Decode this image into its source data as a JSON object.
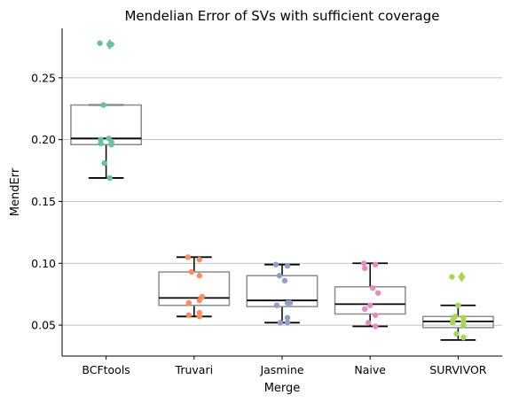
{
  "chart_data": {
    "type": "box",
    "title": "Mendelian Error of SVs with sufficient coverage",
    "xlabel": "Merge",
    "ylabel": "MendErr",
    "ylim": [
      0.025,
      0.29
    ],
    "yticks": [
      0.05,
      0.1,
      0.15,
      0.2,
      0.25
    ],
    "ytick_labels": [
      "0.05",
      "0.10",
      "0.15",
      "0.20",
      "0.25"
    ],
    "grid": "horizontal",
    "categories": [
      "BCFtools",
      "Truvari",
      "Jasmine",
      "Naive",
      "SURVIVOR"
    ],
    "colors": [
      "#66c2a5",
      "#fc8d62",
      "#8da0cb",
      "#e78ac3",
      "#a6d854"
    ],
    "boxes": [
      {
        "whislo": 0.169,
        "q1": 0.196,
        "med": 0.201,
        "q3": 0.228,
        "whishi": 0.228,
        "fliers": [
          0.277
        ]
      },
      {
        "whislo": 0.057,
        "q1": 0.066,
        "med": 0.072,
        "q3": 0.093,
        "whishi": 0.105,
        "fliers": []
      },
      {
        "whislo": 0.052,
        "q1": 0.065,
        "med": 0.07,
        "q3": 0.09,
        "whishi": 0.099,
        "fliers": []
      },
      {
        "whislo": 0.049,
        "q1": 0.059,
        "med": 0.067,
        "q3": 0.081,
        "whishi": 0.1,
        "fliers": []
      },
      {
        "whislo": 0.038,
        "q1": 0.048,
        "med": 0.053,
        "q3": 0.057,
        "whishi": 0.066,
        "fliers": [
          0.089
        ]
      }
    ],
    "points": [
      [
        0.278,
        0.277,
        0.228,
        0.201,
        0.2,
        0.198,
        0.197,
        0.196,
        0.181,
        0.169
      ],
      [
        0.105,
        0.103,
        0.093,
        0.09,
        0.073,
        0.07,
        0.068,
        0.06,
        0.058,
        0.057
      ],
      [
        0.099,
        0.098,
        0.09,
        0.086,
        0.068,
        0.068,
        0.066,
        0.056,
        0.052,
        0.052
      ],
      [
        0.1,
        0.099,
        0.096,
        0.08,
        0.076,
        0.066,
        0.063,
        0.058,
        0.052,
        0.049
      ],
      [
        0.089,
        0.066,
        0.057,
        0.056,
        0.054,
        0.053,
        0.052,
        0.05,
        0.043,
        0.04
      ]
    ]
  }
}
